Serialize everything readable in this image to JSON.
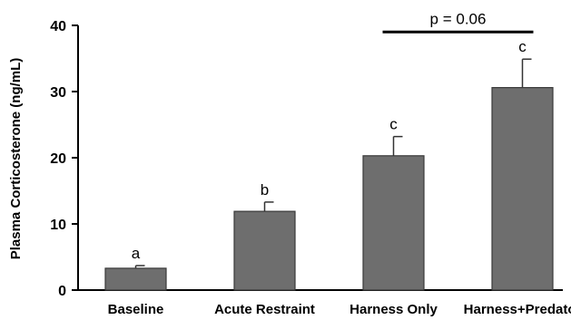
{
  "chart_data": {
    "type": "bar",
    "categories": [
      "Baseline",
      "Acute Restraint",
      "Harness Only",
      "Harness+Predator"
    ],
    "values": [
      3.3,
      11.9,
      20.3,
      30.6
    ],
    "errors": [
      0.4,
      1.4,
      2.9,
      4.3
    ],
    "annotations": [
      "a",
      "b",
      "c",
      "c"
    ],
    "ylabel": "Plasma Corticosterone (ng/mL)",
    "xlabel": "",
    "ylim": [
      0,
      40
    ],
    "yticks": [
      0,
      10,
      20,
      30,
      40
    ],
    "bar_color": "#6e6e6e",
    "grid": false,
    "comparison": {
      "label": "p = 0.06",
      "from_category": "Harness Only",
      "to_category": "Harness+Predator",
      "y": 39
    }
  }
}
